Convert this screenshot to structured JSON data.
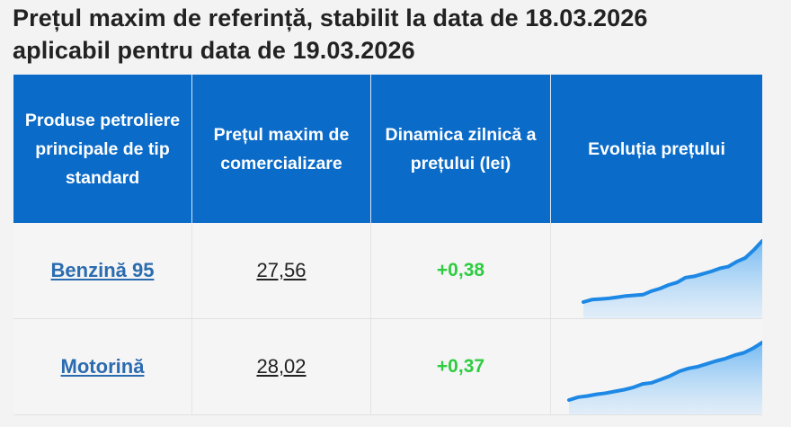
{
  "title_line1": "Prețul maxim de referință, stabilit la data de 18.03.2026",
  "title_line2": "aplicabil pentru data de 19.03.2026",
  "headers": {
    "product": "Produse petroliere principale de tip standard",
    "price": "Prețul maxim de comercializare",
    "dynamic": "Dinamica zilnică a prețului (lei)",
    "evolution": "Evoluția prețului"
  },
  "rows": [
    {
      "product": "Benzină 95",
      "price": "27,56",
      "delta": "+0,38"
    },
    {
      "product": "Motorină",
      "price": "28,02",
      "delta": "+0,37"
    }
  ],
  "colors": {
    "header_bg": "#0a6bc8",
    "link": "#2b6cb0",
    "positive": "#2ecc40",
    "spark_line": "#1e88e5"
  },
  "sparklines": [
    [
      0.0,
      0.04,
      0.05,
      0.06,
      0.08,
      0.1,
      0.11,
      0.12,
      0.18,
      0.22,
      0.28,
      0.32,
      0.4,
      0.42,
      0.46,
      0.5,
      0.55,
      0.58,
      0.66,
      0.72,
      0.85,
      1.0
    ],
    [
      0.0,
      0.05,
      0.07,
      0.1,
      0.12,
      0.15,
      0.18,
      0.22,
      0.28,
      0.3,
      0.36,
      0.42,
      0.5,
      0.55,
      0.58,
      0.63,
      0.68,
      0.72,
      0.78,
      0.82,
      0.9,
      1.0
    ]
  ]
}
